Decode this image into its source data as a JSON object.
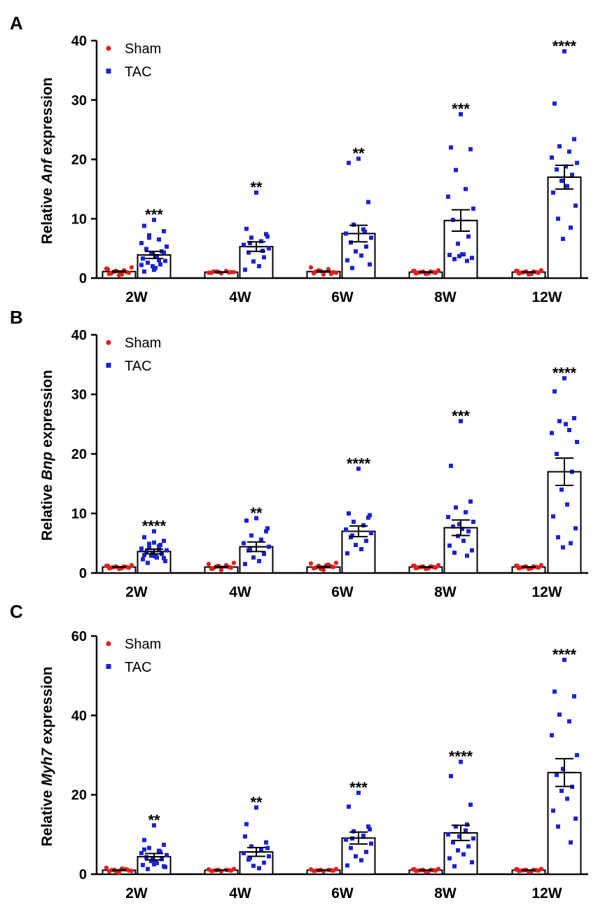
{
  "colors": {
    "sham": "#e3201b",
    "tac": "#1a22d6",
    "axis": "#000000"
  },
  "legend": {
    "sham": "Sham",
    "tac": "TAC"
  },
  "chart_data": [
    {
      "type": "bar",
      "panel": "A",
      "ylabel_pre": "Relative ",
      "ylabel_gene": "Anf",
      "ylabel_post": " expression",
      "categories": [
        "2W",
        "4W",
        "6W",
        "8W",
        "12W"
      ],
      "ylim": [
        0,
        40
      ],
      "yticks": [
        0,
        10,
        20,
        30,
        40
      ],
      "series": [
        {
          "name": "Sham",
          "values": [
            1.1,
            1.0,
            1.1,
            1.0,
            1.0
          ],
          "sem": [
            0.1,
            0.05,
            0.1,
            0.05,
            0.05
          ],
          "points": [
            [
              0.5,
              0.7,
              0.9,
              1.1,
              1.3,
              1.6,
              1.8,
              0.8,
              1.0,
              1.2,
              0.6,
              1.5
            ],
            [
              0.8,
              0.9,
              1.0,
              1.1,
              1.2,
              0.9,
              1.0,
              1.1,
              0.95,
              1.05
            ],
            [
              0.6,
              0.8,
              1.0,
              1.3,
              1.5,
              1.8,
              0.9,
              1.1,
              0.7,
              1.2
            ],
            [
              0.7,
              0.8,
              0.9,
              1.0,
              1.1,
              1.2,
              1.3,
              0.9,
              1.0,
              1.1,
              0.8,
              1.2
            ],
            [
              0.6,
              0.8,
              0.9,
              1.0,
              1.1,
              1.2,
              1.3,
              0.9,
              1.0,
              1.1,
              0.7,
              1.2
            ]
          ]
        },
        {
          "name": "TAC",
          "values": [
            3.9,
            5.3,
            7.5,
            9.7,
            17.0
          ],
          "sem": [
            0.6,
            0.8,
            1.4,
            1.8,
            2.0
          ],
          "points": [
            [
              9.8,
              8.8,
              7.9,
              7.2,
              6.5,
              5.9,
              5.3,
              4.9,
              4.5,
              4.1,
              3.7,
              3.3,
              2.9,
              2.6,
              2.3,
              2.0,
              1.7,
              1.4,
              1.1,
              4.3,
              6.8,
              3.0,
              2.2
            ],
            [
              14.4,
              8.3,
              7.4,
              6.8,
              6.2,
              5.6,
              5.0,
              4.3,
              3.5,
              2.8,
              2.0,
              1.4,
              7.0,
              5.9,
              4.6
            ],
            [
              20.1,
              19.4,
              12.8,
              9.0,
              8.2,
              7.5,
              6.8,
              6.0,
              5.3,
              4.5,
              3.8,
              3.0,
              2.3,
              1.7,
              7.8
            ],
            [
              27.6,
              22.0,
              21.7,
              18.2,
              15.0,
              13.7,
              11.7,
              9.8,
              7.0,
              5.8,
              4.0,
              3.9,
              3.4,
              3.2,
              2.9,
              3.7,
              4.0
            ],
            [
              38.2,
              29.4,
              23.4,
              22.2,
              21.3,
              20.3,
              19.4,
              18.3,
              17.4,
              16.4,
              15.5,
              14.4,
              12.2,
              10.0,
              8.5,
              6.6,
              18.8
            ]
          ]
        }
      ],
      "significance": [
        "***",
        "**",
        "**",
        "***",
        "****"
      ]
    },
    {
      "type": "bar",
      "panel": "B",
      "ylabel_pre": "Relative ",
      "ylabel_gene": "Bnp",
      "ylabel_post": " expression",
      "categories": [
        "2W",
        "4W",
        "6W",
        "8W",
        "12W"
      ],
      "ylim": [
        0,
        40
      ],
      "yticks": [
        0,
        10,
        20,
        30,
        40
      ],
      "series": [
        {
          "name": "Sham",
          "values": [
            1.0,
            1.0,
            1.0,
            1.0,
            1.0
          ],
          "sem": [
            0.05,
            0.1,
            0.1,
            0.05,
            0.05
          ],
          "points": [
            [
              0.7,
              0.8,
              0.9,
              1.0,
              1.1,
              1.2,
              1.3,
              0.9,
              1.0,
              1.1,
              0.8,
              1.2
            ],
            [
              0.5,
              0.7,
              0.9,
              1.1,
              1.3,
              1.5,
              1.7,
              0.8,
              1.0,
              1.2
            ],
            [
              0.5,
              0.8,
              1.0,
              1.2,
              1.4,
              1.6,
              1.7,
              0.9,
              1.1,
              0.7,
              1.3
            ],
            [
              0.7,
              0.8,
              0.9,
              1.0,
              1.1,
              1.2,
              1.3,
              0.9,
              1.0,
              1.1,
              0.8,
              1.2
            ],
            [
              0.7,
              0.8,
              0.9,
              1.0,
              1.1,
              1.2,
              1.3,
              0.9,
              1.0,
              1.1,
              0.8,
              1.2
            ]
          ]
        },
        {
          "name": "TAC",
          "values": [
            3.6,
            4.4,
            7.0,
            7.6,
            17.0
          ],
          "sem": [
            0.4,
            0.8,
            0.9,
            1.3,
            2.3
          ],
          "points": [
            [
              7.0,
              6.0,
              5.4,
              4.9,
              4.5,
              4.1,
              3.8,
              3.5,
              3.2,
              2.9,
              2.6,
              2.3,
              2.0,
              1.7,
              4.7,
              3.4,
              2.8,
              5.1,
              3.0,
              2.5,
              4.2,
              3.9
            ],
            [
              9.2,
              8.8,
              7.0,
              6.3,
              5.6,
              5.0,
              4.4,
              3.8,
              3.2,
              2.6,
              2.0,
              1.5,
              7.5,
              4.0
            ],
            [
              17.5,
              10.0,
              9.3,
              8.6,
              8.0,
              7.3,
              6.7,
              6.0,
              5.4,
              4.7,
              4.0,
              3.3,
              9.7,
              6.3
            ],
            [
              25.5,
              18.0,
              12.0,
              11.0,
              10.2,
              9.4,
              8.6,
              7.8,
              7.0,
              6.2,
              5.4,
              4.6,
              3.8,
              3.4,
              2.9,
              8.2,
              7.4
            ],
            [
              32.7,
              30.5,
              26.0,
              25.5,
              24.0,
              23.5,
              22.0,
              20.0,
              17.0,
              14.0,
              11.5,
              9.5,
              7.5,
              6.0,
              5.0,
              4.3,
              25.0
            ]
          ]
        }
      ],
      "significance": [
        "****",
        "**",
        "****",
        "***",
        "****"
      ]
    },
    {
      "type": "bar",
      "panel": "C",
      "ylabel_pre": "Relative ",
      "ylabel_gene": "Myh7",
      "ylabel_post": " expression",
      "categories": [
        "2W",
        "4W",
        "6W",
        "8W",
        "12W"
      ],
      "ylim": [
        0,
        60
      ],
      "yticks": [
        0,
        20,
        40,
        60
      ],
      "series": [
        {
          "name": "Sham",
          "values": [
            1.0,
            1.0,
            1.0,
            1.0,
            1.0
          ],
          "sem": [
            0.1,
            0.05,
            0.05,
            0.05,
            0.05
          ],
          "points": [
            [
              0.4,
              0.7,
              0.9,
              1.1,
              1.3,
              1.6,
              0.8,
              1.0,
              1.2,
              0.6,
              1.4
            ],
            [
              0.7,
              0.8,
              0.9,
              1.0,
              1.1,
              1.2,
              1.3,
              0.9,
              1.0,
              1.1
            ],
            [
              0.7,
              0.8,
              0.9,
              1.0,
              1.1,
              1.2,
              1.3,
              0.9,
              1.0,
              1.1
            ],
            [
              0.6,
              0.8,
              0.9,
              1.0,
              1.1,
              1.2,
              1.3,
              0.9,
              1.0,
              1.1,
              0.7,
              1.2
            ],
            [
              0.6,
              0.8,
              0.9,
              1.0,
              1.1,
              1.2,
              1.3,
              0.9,
              1.0,
              1.1,
              0.7,
              1.2
            ]
          ]
        },
        {
          "name": "TAC",
          "values": [
            4.4,
            5.6,
            9.1,
            10.4,
            25.6
          ],
          "sem": [
            0.8,
            1.1,
            1.5,
            1.9,
            3.5
          ],
          "points": [
            [
              12.3,
              8.6,
              7.4,
              6.6,
              5.9,
              5.3,
              4.8,
              4.3,
              3.8,
              3.3,
              2.8,
              2.3,
              1.8,
              1.3,
              5.6,
              4.0,
              3.0,
              2.5,
              6.2,
              2.0
            ],
            [
              16.8,
              12.6,
              8.0,
              7.0,
              6.1,
              5.3,
              4.5,
              3.7,
              2.9,
              2.1,
              1.5,
              9.5,
              6.6,
              4.1
            ],
            [
              20.5,
              17.0,
              12.0,
              10.8,
              9.7,
              8.7,
              7.7,
              6.6,
              5.6,
              4.5,
              3.5,
              2.2,
              11.3,
              9.0
            ],
            [
              28.3,
              24.7,
              17.5,
              12.0,
              11.0,
              10.0,
              9.0,
              8.0,
              7.0,
              6.0,
              5.0,
              4.0,
              3.0,
              2.0,
              12.5,
              9.5
            ],
            [
              54.0,
              46.0,
              44.8,
              40.2,
              38.5,
              35.0,
              30.0,
              25.0,
              22.0,
              21.0,
              19.0,
              16.0,
              14.0,
              12.0,
              8.0,
              26.5
            ]
          ]
        }
      ],
      "significance": [
        "**",
        "**",
        "***",
        "****",
        "****"
      ]
    }
  ]
}
